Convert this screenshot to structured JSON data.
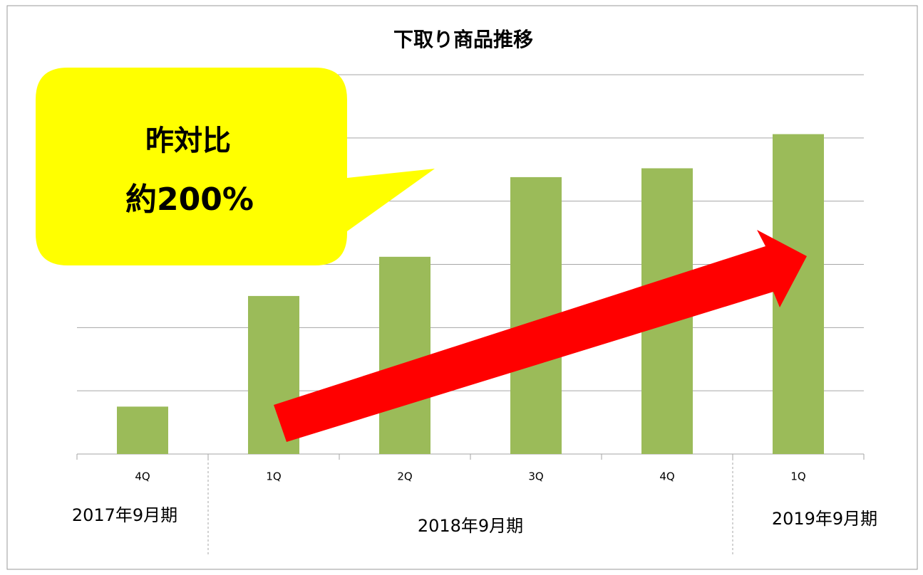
{
  "chart_data": {
    "type": "bar",
    "title": "下取り商品推移",
    "categories": [
      "4Q",
      "1Q",
      "2Q",
      "3Q",
      "4Q",
      "1Q"
    ],
    "groups": [
      {
        "name": "2017年9月期",
        "size": 1
      },
      {
        "name": "2018年9月期",
        "size": 4
      },
      {
        "name": "2019年9月期",
        "size": 1
      }
    ],
    "values": [
      0.75,
      2.5,
      3.12,
      4.38,
      4.52,
      5.06
    ],
    "color": "#9bbb59",
    "ylim": [
      0,
      6
    ],
    "yticks": [
      0,
      1,
      2,
      3,
      4,
      5,
      6
    ],
    "grid": true,
    "annotation": [
      "昨対比",
      "約200%"
    ]
  }
}
